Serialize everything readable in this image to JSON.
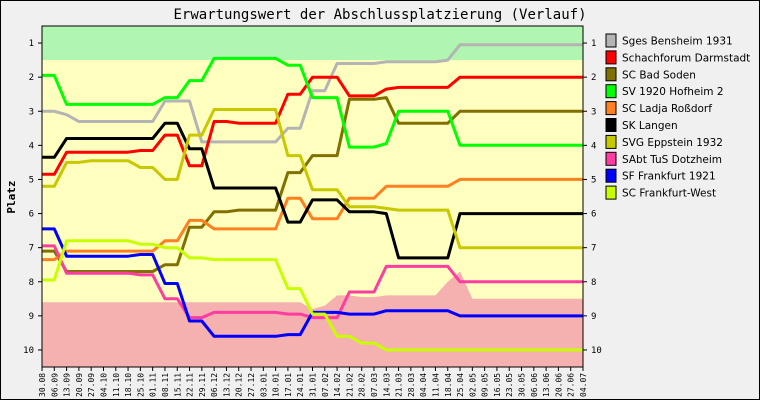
{
  "chart_data": {
    "type": "line",
    "title": "Erwartungswert der Abschlussplatzierung (Verlauf)",
    "ylabel": "Platz",
    "ylim": [
      0.5,
      10.5
    ],
    "y_reversed": true,
    "yticks": [
      1,
      2,
      3,
      4,
      5,
      6,
      7,
      8,
      9,
      10
    ],
    "x": [
      "30.08",
      "06.09",
      "13.09",
      "20.09",
      "27.09",
      "04.10",
      "11.10",
      "18.10",
      "25.10",
      "01.11",
      "08.11",
      "15.11",
      "22.11",
      "29.11",
      "06.12",
      "13.12",
      "20.12",
      "27.12",
      "03.01",
      "10.01",
      "17.01",
      "24.01",
      "31.01",
      "07.02",
      "14.02",
      "21.02",
      "28.02",
      "07.03",
      "14.03",
      "21.03",
      "28.03",
      "04.04",
      "11.04",
      "18.04",
      "25.04",
      "02.05",
      "09.05",
      "16.05",
      "23.05",
      "30.05",
      "06.06",
      "13.06",
      "20.06",
      "27.06",
      "04.07"
    ],
    "bands": {
      "promotion_color": "#b0f5b0",
      "middle_color": "#ffffc0",
      "relegation_color": "#f5b0b0",
      "promotion_until": 1.5,
      "relegation_boundary": [
        8.6,
        8.6,
        8.6,
        8.6,
        8.6,
        8.6,
        8.6,
        8.6,
        8.6,
        8.6,
        8.6,
        8.6,
        8.6,
        8.6,
        8.6,
        8.6,
        8.6,
        8.6,
        8.6,
        8.6,
        8.6,
        8.6,
        8.8,
        8.7,
        8.4,
        8.4,
        8.45,
        8.45,
        8.4,
        8.4,
        8.4,
        8.4,
        8.4,
        8.0,
        7.7,
        8.5,
        8.5,
        8.5,
        8.5,
        8.5,
        8.5,
        8.5,
        8.5,
        8.5,
        8.5
      ]
    },
    "series": [
      {
        "name": "Sges Bensheim 1931",
        "color": "#b4b4b4",
        "values": [
          3.0,
          3.0,
          3.1,
          3.3,
          3.3,
          3.3,
          3.3,
          3.3,
          3.3,
          3.3,
          2.7,
          2.7,
          2.7,
          3.9,
          3.9,
          3.9,
          3.9,
          3.9,
          3.9,
          3.9,
          3.5,
          3.5,
          2.4,
          2.4,
          1.6,
          1.6,
          1.6,
          1.6,
          1.55,
          1.55,
          1.55,
          1.55,
          1.55,
          1.5,
          1.05,
          1.05,
          1.05,
          1.05,
          1.05,
          1.05,
          1.05,
          1.05,
          1.05,
          1.05,
          1.05
        ]
      },
      {
        "name": "Schachforum Darmstadt",
        "color": "#ff0000",
        "values": [
          4.85,
          4.85,
          4.2,
          4.2,
          4.2,
          4.2,
          4.2,
          4.2,
          4.15,
          4.15,
          3.7,
          3.7,
          4.6,
          4.6,
          3.3,
          3.3,
          3.35,
          3.35,
          3.35,
          3.35,
          2.5,
          2.5,
          2.0,
          2.0,
          2.0,
          2.55,
          2.55,
          2.55,
          2.35,
          2.3,
          2.3,
          2.3,
          2.3,
          2.3,
          2.0,
          2.0,
          2.0,
          2.0,
          2.0,
          2.0,
          2.0,
          2.0,
          2.0,
          2.0,
          2.0
        ]
      },
      {
        "name": "SC Bad Soden",
        "color": "#807000",
        "values": [
          7.1,
          7.1,
          7.7,
          7.7,
          7.7,
          7.7,
          7.7,
          7.7,
          7.7,
          7.7,
          7.5,
          7.5,
          6.4,
          6.4,
          5.95,
          5.95,
          5.9,
          5.9,
          5.9,
          5.9,
          4.8,
          4.8,
          4.3,
          4.3,
          4.3,
          2.65,
          2.65,
          2.65,
          2.6,
          3.35,
          3.35,
          3.35,
          3.35,
          3.35,
          3.0,
          3.0,
          3.0,
          3.0,
          3.0,
          3.0,
          3.0,
          3.0,
          3.0,
          3.0,
          3.0
        ]
      },
      {
        "name": "SV 1920 Hofheim 2",
        "color": "#00ff00",
        "values": [
          1.95,
          1.95,
          2.8,
          2.8,
          2.8,
          2.8,
          2.8,
          2.8,
          2.8,
          2.8,
          2.6,
          2.6,
          2.1,
          2.1,
          1.45,
          1.45,
          1.45,
          1.45,
          1.45,
          1.45,
          1.65,
          1.65,
          2.6,
          2.6,
          2.6,
          4.05,
          4.05,
          4.05,
          3.95,
          3.0,
          3.0,
          3.0,
          3.0,
          3.0,
          4.0,
          4.0,
          4.0,
          4.0,
          4.0,
          4.0,
          4.0,
          4.0,
          4.0,
          4.0,
          4.0
        ]
      },
      {
        "name": "SC Ladja Roßdorf",
        "color": "#ff8020",
        "values": [
          7.35,
          7.35,
          7.1,
          7.1,
          7.1,
          7.1,
          7.1,
          7.1,
          7.1,
          7.1,
          6.8,
          6.8,
          6.2,
          6.2,
          6.45,
          6.45,
          6.45,
          6.45,
          6.45,
          6.45,
          5.55,
          5.55,
          6.15,
          6.15,
          6.15,
          5.55,
          5.55,
          5.55,
          5.2,
          5.2,
          5.2,
          5.2,
          5.2,
          5.2,
          5.0,
          5.0,
          5.0,
          5.0,
          5.0,
          5.0,
          5.0,
          5.0,
          5.0,
          5.0,
          5.0
        ]
      },
      {
        "name": "SK Langen",
        "color": "#000000",
        "values": [
          4.35,
          4.35,
          3.8,
          3.8,
          3.8,
          3.8,
          3.8,
          3.8,
          3.8,
          3.8,
          3.35,
          3.35,
          4.1,
          4.1,
          5.25,
          5.25,
          5.25,
          5.25,
          5.25,
          5.25,
          6.25,
          6.25,
          5.6,
          5.6,
          5.6,
          5.95,
          5.95,
          5.95,
          6.0,
          7.3,
          7.3,
          7.3,
          7.3,
          7.3,
          6.0,
          6.0,
          6.0,
          6.0,
          6.0,
          6.0,
          6.0,
          6.0,
          6.0,
          6.0,
          6.0
        ]
      },
      {
        "name": "SVG Eppstein 1932",
        "color": "#c8c800",
        "values": [
          5.2,
          5.2,
          4.5,
          4.5,
          4.45,
          4.45,
          4.45,
          4.45,
          4.65,
          4.65,
          5.0,
          5.0,
          3.7,
          3.7,
          2.95,
          2.95,
          2.95,
          2.95,
          2.95,
          2.95,
          4.3,
          4.3,
          5.3,
          5.3,
          5.3,
          5.8,
          5.8,
          5.8,
          5.85,
          5.9,
          5.9,
          5.9,
          5.9,
          5.9,
          7.0,
          7.0,
          7.0,
          7.0,
          7.0,
          7.0,
          7.0,
          7.0,
          7.0,
          7.0,
          7.0
        ]
      },
      {
        "name": "SAbt TuS Dotzheim",
        "color": "#ff3ca0",
        "values": [
          6.95,
          6.95,
          7.75,
          7.75,
          7.75,
          7.75,
          7.75,
          7.75,
          7.8,
          7.8,
          8.5,
          8.5,
          9.05,
          9.05,
          8.9,
          8.9,
          8.9,
          8.9,
          8.9,
          8.9,
          8.95,
          8.95,
          9.05,
          9.05,
          9.05,
          8.3,
          8.3,
          8.3,
          7.55,
          7.55,
          7.55,
          7.55,
          7.55,
          7.55,
          8.0,
          8.0,
          8.0,
          8.0,
          8.0,
          8.0,
          8.0,
          8.0,
          8.0,
          8.0,
          8.0
        ]
      },
      {
        "name": "SF Frankfurt 1921",
        "color": "#0000ff",
        "values": [
          6.45,
          6.45,
          7.25,
          7.25,
          7.25,
          7.25,
          7.25,
          7.25,
          7.2,
          7.2,
          8.05,
          8.05,
          9.15,
          9.15,
          9.6,
          9.6,
          9.6,
          9.6,
          9.6,
          9.6,
          9.55,
          9.55,
          8.9,
          8.9,
          8.9,
          8.95,
          8.95,
          8.95,
          8.85,
          8.85,
          8.85,
          8.85,
          8.85,
          8.85,
          9.0,
          9.0,
          9.0,
          9.0,
          9.0,
          9.0,
          9.0,
          9.0,
          9.0,
          9.0,
          9.0
        ]
      },
      {
        "name": "SC Frankfurt-West",
        "color": "#c8ff00",
        "values": [
          7.95,
          7.95,
          6.8,
          6.8,
          6.8,
          6.8,
          6.8,
          6.8,
          6.9,
          6.9,
          7.0,
          7.0,
          7.3,
          7.3,
          7.35,
          7.35,
          7.35,
          7.35,
          7.35,
          7.35,
          8.2,
          8.2,
          8.95,
          8.95,
          9.6,
          9.6,
          9.8,
          9.8,
          10.0,
          10.0,
          10.0,
          10.0,
          10.0,
          10.0,
          10.0,
          10.0,
          10.0,
          10.0,
          10.0,
          10.0,
          10.0,
          10.0,
          10.0,
          10.0,
          10.0
        ]
      }
    ]
  }
}
